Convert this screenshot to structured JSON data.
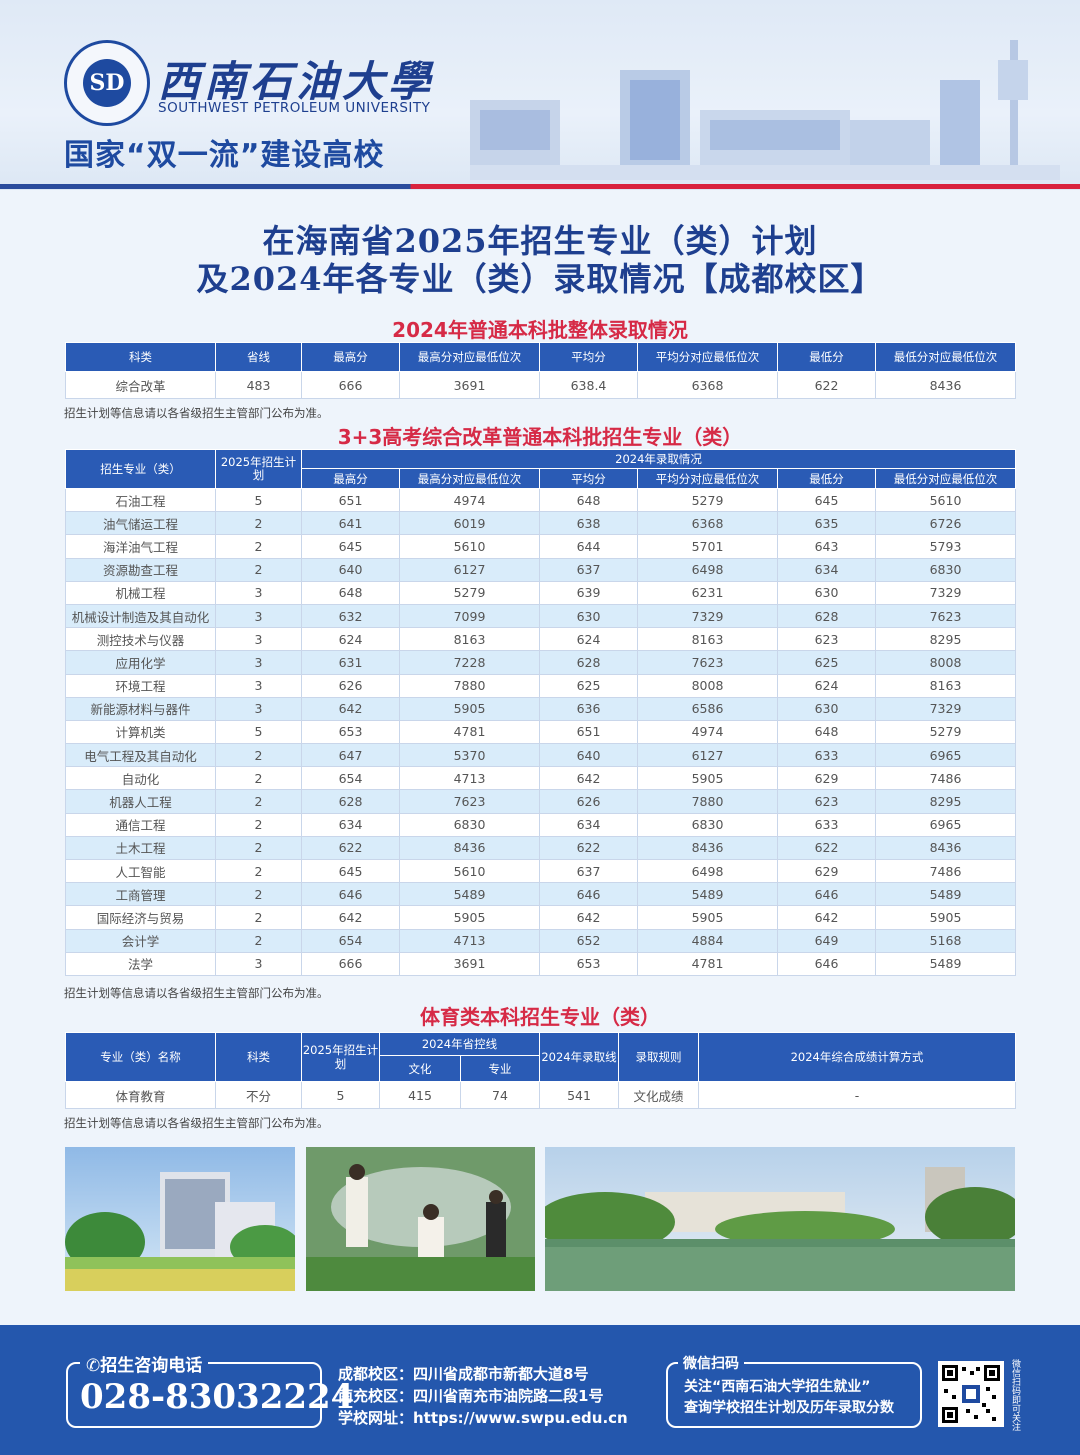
{
  "header": {
    "school_cn": "西南石油大學",
    "school_en": "SOUTHWEST PETROLEUM UNIVERSITY",
    "logo_letters": "SD",
    "slogan": "国家“双一流”建设高校"
  },
  "titles": {
    "line1": "在海南省2025年招生专业（类）计划",
    "line2": "及2024年各专业（类）录取情况【成都校区】"
  },
  "overall": {
    "title": "2024年普通本科批整体录取情况",
    "headers": [
      "科类",
      "省线",
      "最高分",
      "最高分对应最低位次",
      "平均分",
      "平均分对应最低位次",
      "最低分",
      "最低分对应最低位次"
    ],
    "rows": [
      [
        "综合改革",
        "483",
        "666",
        "3691",
        "638.4",
        "6368",
        "622",
        "8436"
      ]
    ],
    "note": "招生计划等信息请以各省级招生主管部门公布为准。"
  },
  "majors": {
    "title": "3+3高考综合改革普通本科批招生专业（类）",
    "head_major": "招生专业（类）",
    "head_plan": "2025年招生计划",
    "head_group": "2024年录取情况",
    "subheaders": [
      "最高分",
      "最高分对应最低位次",
      "平均分",
      "平均分对应最低位次",
      "最低分",
      "最低分对应最低位次"
    ],
    "rows": [
      [
        "石油工程",
        "5",
        "651",
        "4974",
        "648",
        "5279",
        "645",
        "5610"
      ],
      [
        "油气储运工程",
        "2",
        "641",
        "6019",
        "638",
        "6368",
        "635",
        "6726"
      ],
      [
        "海洋油气工程",
        "2",
        "645",
        "5610",
        "644",
        "5701",
        "643",
        "5793"
      ],
      [
        "资源勘查工程",
        "2",
        "640",
        "6127",
        "637",
        "6498",
        "634",
        "6830"
      ],
      [
        "机械工程",
        "3",
        "648",
        "5279",
        "639",
        "6231",
        "630",
        "7329"
      ],
      [
        "机械设计制造及其自动化",
        "3",
        "632",
        "7099",
        "630",
        "7329",
        "628",
        "7623"
      ],
      [
        "测控技术与仪器",
        "3",
        "624",
        "8163",
        "624",
        "8163",
        "623",
        "8295"
      ],
      [
        "应用化学",
        "3",
        "631",
        "7228",
        "628",
        "7623",
        "625",
        "8008"
      ],
      [
        "环境工程",
        "3",
        "626",
        "7880",
        "625",
        "8008",
        "624",
        "8163"
      ],
      [
        "新能源材料与器件",
        "3",
        "642",
        "5905",
        "636",
        "6586",
        "630",
        "7329"
      ],
      [
        "计算机类",
        "5",
        "653",
        "4781",
        "651",
        "4974",
        "648",
        "5279"
      ],
      [
        "电气工程及其自动化",
        "2",
        "647",
        "5370",
        "640",
        "6127",
        "633",
        "6965"
      ],
      [
        "自动化",
        "2",
        "654",
        "4713",
        "642",
        "5905",
        "629",
        "7486"
      ],
      [
        "机器人工程",
        "2",
        "628",
        "7623",
        "626",
        "7880",
        "623",
        "8295"
      ],
      [
        "通信工程",
        "2",
        "634",
        "6830",
        "634",
        "6830",
        "633",
        "6965"
      ],
      [
        "土木工程",
        "2",
        "622",
        "8436",
        "622",
        "8436",
        "622",
        "8436"
      ],
      [
        "人工智能",
        "2",
        "645",
        "5610",
        "637",
        "6498",
        "629",
        "7486"
      ],
      [
        "工商管理",
        "2",
        "646",
        "5489",
        "646",
        "5489",
        "646",
        "5489"
      ],
      [
        "国际经济与贸易",
        "2",
        "642",
        "5905",
        "642",
        "5905",
        "642",
        "5905"
      ],
      [
        "会计学",
        "2",
        "654",
        "4713",
        "652",
        "4884",
        "649",
        "5168"
      ],
      [
        "法学",
        "3",
        "666",
        "3691",
        "653",
        "4781",
        "646",
        "5489"
      ]
    ],
    "note": "招生计划等信息请以各省级招生主管部门公布为准。"
  },
  "sports": {
    "title": "体育类本科招生专业（类）",
    "h_name": "专业（类）名称",
    "h_kelei": "科类",
    "h_plan": "2025年招生计划",
    "h_ctrl": "2024年省控线",
    "h_wenhua": "文化",
    "h_zhuanye": "专业",
    "h_cut": "2024年录取线",
    "h_rule": "录取规则",
    "h_calc": "2024年综合成绩计算方式",
    "row": [
      "体育教育",
      "不分",
      "5",
      "415",
      "74",
      "541",
      "文化成绩",
      "-"
    ],
    "note": "招生计划等信息请以各省级招生主管部门公布为准。"
  },
  "footer": {
    "hotline_label": "招生咨询电话",
    "hotline": "028-83032224",
    "chengdu": "成都校区：四川省成都市新都大道8号",
    "nanchong": "南充校区：四川省南充市油院路二段1号",
    "website": "学校网址：https://www.swpu.edu.cn",
    "wx_label": "微信扫码",
    "wx_line1": "关注“西南石油大学招生就业”",
    "wx_line2": "查询学校招生计划及历年录取分数",
    "qr_side": "微信扫码即可关注"
  }
}
